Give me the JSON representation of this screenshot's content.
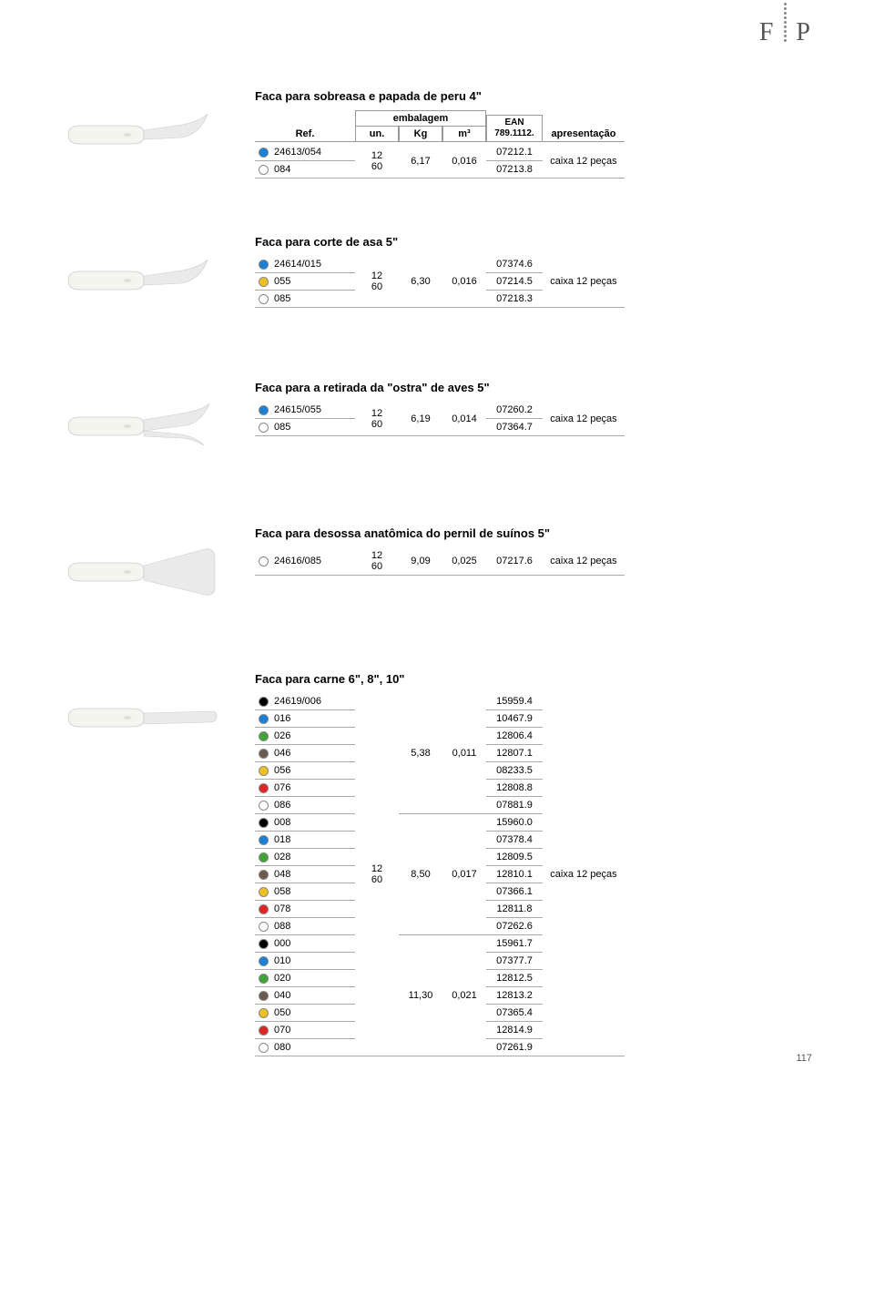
{
  "logo": {
    "letter1": "F",
    "letter2": "P"
  },
  "page_number": "117",
  "header": {
    "ref": "Ref.",
    "embalagem": "embalagem",
    "un": "un.",
    "kg": "Kg",
    "m3": "m³",
    "ean_line1": "EAN",
    "ean_line2": "789.1112.",
    "apresentacao": "apresentação"
  },
  "swatch_colors": {
    "blue": "#1a7fd6",
    "yellow": "#f0c01e",
    "white": "#ffffff",
    "black": "#000000",
    "green": "#3fa535",
    "brown": "#6b5b4e",
    "red": "#e02424"
  },
  "sections": [
    {
      "title": "Faca para sobreasa e papada de peru 4\"",
      "show_header": true,
      "knife_variant": "curved_small",
      "rows": [
        {
          "swatch": "blue",
          "ref": "24613/054",
          "ean": "07212.1",
          "un": {
            "rowspan": 2,
            "lines": [
              "12",
              "60"
            ]
          },
          "kg": {
            "rowspan": 2,
            "value": "6,17"
          },
          "m3": {
            "rowspan": 2,
            "value": "0,016"
          },
          "apr": {
            "rowspan": 2,
            "value": "caixa 12 peças"
          }
        },
        {
          "swatch": "white",
          "ref": "084",
          "ean": "07213.8"
        }
      ]
    },
    {
      "title": "Faca para corte de asa 5\"",
      "show_header": false,
      "knife_variant": "curved_small",
      "rows": [
        {
          "swatch": "blue",
          "ref": "24614/015",
          "ean": "07374.6",
          "un": {
            "rowspan": 3,
            "lines": [
              "12",
              "60"
            ]
          },
          "kg": {
            "rowspan": 3,
            "value": "6,30"
          },
          "m3": {
            "rowspan": 3,
            "value": "0,016"
          },
          "apr": {
            "rowspan": 3,
            "value": "caixa 12 peças"
          }
        },
        {
          "swatch": "yellow",
          "ref": "055",
          "ean": "07214.5"
        },
        {
          "swatch": "white",
          "ref": "085",
          "ean": "07218.3"
        }
      ]
    },
    {
      "title": "Faca para a retirada da \"ostra\" de aves 5\"",
      "show_header": false,
      "knife_variant": "double_curved",
      "rows": [
        {
          "swatch": "blue",
          "ref": "24615/055",
          "ean": "07260.2",
          "un": {
            "rowspan": 2,
            "lines": [
              "12",
              "60"
            ]
          },
          "kg": {
            "rowspan": 2,
            "value": "6,19"
          },
          "m3": {
            "rowspan": 2,
            "value": "0,014"
          },
          "apr": {
            "rowspan": 2,
            "value": "caixa 12 peças"
          }
        },
        {
          "swatch": "white",
          "ref": "085",
          "ean": "07364.7"
        }
      ]
    },
    {
      "title": "Faca para desossa anatômica do pernil de suínos 5\"",
      "show_header": false,
      "knife_variant": "wide_cleaver",
      "rows": [
        {
          "swatch": "white",
          "ref": "24616/085",
          "ean": "07217.6",
          "un": {
            "rowspan": 1,
            "lines": [
              "12",
              "60"
            ]
          },
          "kg": {
            "rowspan": 1,
            "value": "9,09"
          },
          "m3": {
            "rowspan": 1,
            "value": "0,025"
          },
          "apr": {
            "rowspan": 1,
            "value": "caixa 12 peças"
          }
        }
      ]
    },
    {
      "title": "Faca para carne 6\", 8\", 10\"",
      "show_header": false,
      "knife_variant": "long_straight",
      "rows": [
        {
          "swatch": "black",
          "ref": "24619/006",
          "ean": "15959.4",
          "un": {
            "rowspan": 21,
            "lines": [
              "12",
              "60"
            ]
          },
          "kg": {
            "rowspan": 7,
            "value": "5,38"
          },
          "m3": {
            "rowspan": 7,
            "value": "0,011"
          },
          "apr": {
            "rowspan": 21,
            "value": "caixa 12 peças"
          }
        },
        {
          "swatch": "blue",
          "ref": "016",
          "ean": "10467.9"
        },
        {
          "swatch": "green",
          "ref": "026",
          "ean": "12806.4"
        },
        {
          "swatch": "brown",
          "ref": "046",
          "ean": "12807.1"
        },
        {
          "swatch": "yellow",
          "ref": "056",
          "ean": "08233.5"
        },
        {
          "swatch": "red",
          "ref": "076",
          "ean": "12808.8"
        },
        {
          "swatch": "white",
          "ref": "086",
          "ean": "07881.9"
        },
        {
          "swatch": "black",
          "ref": "008",
          "ean": "15960.0",
          "kg": {
            "rowspan": 7,
            "value": "8,50"
          },
          "m3": {
            "rowspan": 7,
            "value": "0,017"
          }
        },
        {
          "swatch": "blue",
          "ref": "018",
          "ean": "07378.4"
        },
        {
          "swatch": "green",
          "ref": "028",
          "ean": "12809.5"
        },
        {
          "swatch": "brown",
          "ref": "048",
          "ean": "12810.1"
        },
        {
          "swatch": "yellow",
          "ref": "058",
          "ean": "07366.1"
        },
        {
          "swatch": "red",
          "ref": "078",
          "ean": "12811.8"
        },
        {
          "swatch": "white",
          "ref": "088",
          "ean": "07262.6"
        },
        {
          "swatch": "black",
          "ref": "000",
          "ean": "15961.7",
          "kg": {
            "rowspan": 7,
            "value": "11,30"
          },
          "m3": {
            "rowspan": 7,
            "value": "0,021"
          }
        },
        {
          "swatch": "blue",
          "ref": "010",
          "ean": "07377.7"
        },
        {
          "swatch": "green",
          "ref": "020",
          "ean": "12812.5"
        },
        {
          "swatch": "brown",
          "ref": "040",
          "ean": "12813.2"
        },
        {
          "swatch": "yellow",
          "ref": "050",
          "ean": "07365.4"
        },
        {
          "swatch": "red",
          "ref": "070",
          "ean": "12814.9"
        },
        {
          "swatch": "white",
          "ref": "080",
          "ean": "07261.9"
        }
      ]
    }
  ]
}
